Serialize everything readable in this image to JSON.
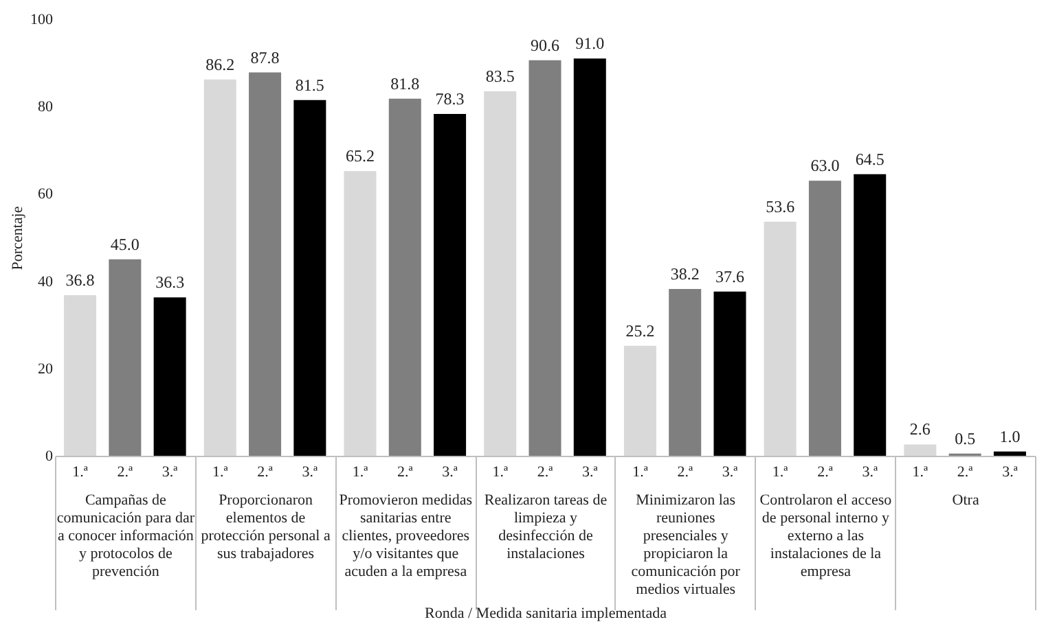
{
  "chart_data": {
    "type": "bar",
    "xlabel": "Ronda / Medida sanitaria implementada",
    "ylabel": "Porcentaje",
    "categories": [
      "Campañas de comunicación para dar a conocer información y protocolos de prevención",
      "Proporcionaron elementos de protección personal a sus trabajadores",
      "Promovieron medidas sanitarias entre clientes, proveedores y/o visitantes que acuden a la empresa",
      "Realizaron tareas de limpieza y desinfección de instalaciones",
      "Minimizaron las reuniones presenciales y propiciaron la comunicación por medios virtuales",
      "Controlaron el acceso de personal interno y externo a las instalaciones de la empresa",
      "Otra"
    ],
    "series": [
      {
        "name": "1.ª",
        "color": "#d9d9d9",
        "values": [
          36.8,
          86.2,
          65.2,
          83.5,
          25.2,
          53.6,
          2.6
        ],
        "value_labels": [
          "36.8",
          "86.2",
          "65.2",
          "83.5",
          "25.2",
          "53.6",
          "2.6"
        ]
      },
      {
        "name": "2.ª",
        "color": "#7f7f7f",
        "values": [
          45.0,
          87.8,
          81.8,
          90.6,
          38.2,
          63.0,
          0.5
        ],
        "value_labels": [
          "45.0",
          "87.8",
          "81.8",
          "90.6",
          "38.2",
          "63.0",
          "0.5"
        ]
      },
      {
        "name": "3.ª",
        "color": "#000000",
        "values": [
          36.3,
          81.5,
          78.3,
          91.0,
          37.6,
          64.5,
          1.0
        ],
        "value_labels": [
          "36.3",
          "81.5",
          "78.3",
          "91.0",
          "37.6",
          "64.5",
          "1.0"
        ]
      }
    ],
    "ylim": [
      0,
      100
    ],
    "yticks": [
      0,
      20,
      40,
      60,
      80,
      100
    ],
    "grid": false,
    "legend": false
  }
}
